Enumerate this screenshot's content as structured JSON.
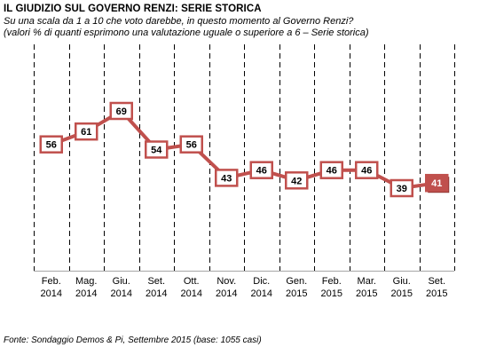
{
  "header": {
    "title": "IL GIUDIZIO  SUL GOVERNO RENZI: SERIE STORICA",
    "subtitle_line1": "Su una scala da 1 a 10 che voto darebbe, in questo momento al Governo Renzi?",
    "subtitle_line2": "(valori % di quanti esprimono una valutazione uguale o superiore a 6 – Serie storica)"
  },
  "footer": {
    "source": "Fonte: Sondaggio Demos & Pi, Settembre 2015 (base: 1055 casi)"
  },
  "chart_data": {
    "type": "line",
    "categories": [
      [
        "Feb.",
        "2014"
      ],
      [
        "Mag.",
        "2014"
      ],
      [
        "Giu.",
        "2014"
      ],
      [
        "Set.",
        "2014"
      ],
      [
        "Ott.",
        "2014"
      ],
      [
        "Nov.",
        "2014"
      ],
      [
        "Dic.",
        "2014"
      ],
      [
        "Gen.",
        "2015"
      ],
      [
        "Feb.",
        "2015"
      ],
      [
        "Mar.",
        "2015"
      ],
      [
        "Giu.",
        "2015"
      ],
      [
        "Set.",
        "2015"
      ]
    ],
    "values": [
      56,
      61,
      69,
      54,
      56,
      43,
      46,
      42,
      46,
      46,
      39,
      41
    ],
    "ylim": [
      25,
      85
    ],
    "grid": "vertical dashed lines between categories",
    "highlight_last": true,
    "colors": {
      "line": "#c0504d",
      "marker_border": "#c0504d",
      "marker_fill": "#ffffff",
      "highlight_fill": "#c0504d",
      "highlight_text": "#ffffff",
      "grid": "#000000",
      "axis": "#a6a6a6"
    }
  }
}
